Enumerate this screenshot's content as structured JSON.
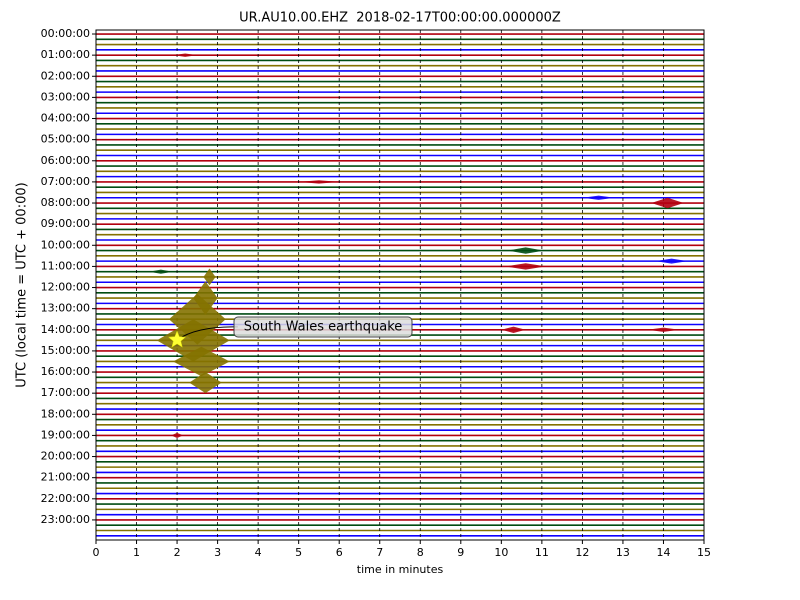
{
  "chart_data": {
    "type": "dayplot",
    "title": "UR.AU10.00.EHZ  2018-02-17T00:00:00.000000Z",
    "x_label": "time in minutes",
    "y_label": "UTC (local time = UTC + 00:00)",
    "xlim": [
      0,
      15
    ],
    "xticks": [
      0,
      1,
      2,
      3,
      4,
      5,
      6,
      7,
      8,
      9,
      10,
      11,
      12,
      13,
      14,
      15
    ],
    "ylim": [
      -0.19,
      23.95
    ],
    "yticks": [
      {
        "value": 0,
        "label": "00:00:00"
      },
      {
        "value": 1,
        "label": "01:00:00"
      },
      {
        "value": 2,
        "label": "02:00:00"
      },
      {
        "value": 3,
        "label": "03:00:00"
      },
      {
        "value": 4,
        "label": "04:00:00"
      },
      {
        "value": 5,
        "label": "05:00:00"
      },
      {
        "value": 6,
        "label": "06:00:00"
      },
      {
        "value": 7,
        "label": "07:00:00"
      },
      {
        "value": 8,
        "label": "08:00:00"
      },
      {
        "value": 9,
        "label": "09:00:00"
      },
      {
        "value": 10,
        "label": "10:00:00"
      },
      {
        "value": 11,
        "label": "11:00:00"
      },
      {
        "value": 12,
        "label": "12:00:00"
      },
      {
        "value": 13,
        "label": "13:00:00"
      },
      {
        "value": 14,
        "label": "14:00:00"
      },
      {
        "value": 15,
        "label": "15:00:00"
      },
      {
        "value": 16,
        "label": "16:00:00"
      },
      {
        "value": 17,
        "label": "17:00:00"
      },
      {
        "value": 18,
        "label": "18:00:00"
      },
      {
        "value": 19,
        "label": "19:00:00"
      },
      {
        "value": 20,
        "label": "20:00:00"
      },
      {
        "value": 21,
        "label": "21:00:00"
      },
      {
        "value": 22,
        "label": "22:00:00"
      },
      {
        "value": 23,
        "label": "23:00:00"
      }
    ],
    "grid": true,
    "trace_colors": [
      "#B2000F",
      "#004C12",
      "#847200",
      "#0E01FF"
    ],
    "bursts": [
      {
        "hour": 11.5,
        "x": 2.8,
        "span": 0.3,
        "amp": 0.4
      },
      {
        "hour": 12.5,
        "x": 2.7,
        "span": 0.6,
        "amp": 0.8
      },
      {
        "hour": 13.5,
        "x": 2.5,
        "span": 1.4,
        "amp": 1.2
      },
      {
        "hour": 14.5,
        "x": 2.4,
        "span": 1.8,
        "amp": 1.0
      },
      {
        "hour": 15.5,
        "x": 2.6,
        "span": 1.4,
        "amp": 0.7
      },
      {
        "hour": 16.5,
        "x": 2.7,
        "span": 0.8,
        "amp": 0.5
      },
      {
        "hour": 8,
        "x": 14.1,
        "span": 0.8,
        "amp": 0.25
      },
      {
        "hour": 10.25,
        "x": 10.6,
        "span": 0.9,
        "amp": 0.15
      },
      {
        "hour": 11,
        "x": 10.6,
        "span": 1.0,
        "amp": 0.15
      },
      {
        "hour": 7.75,
        "x": 12.4,
        "span": 0.8,
        "amp": 0.1
      },
      {
        "hour": 14,
        "x": 10.3,
        "span": 0.6,
        "amp": 0.15
      },
      {
        "hour": 19,
        "x": 2.0,
        "span": 0.3,
        "amp": 0.12
      },
      {
        "hour": 11.25,
        "x": 1.6,
        "span": 0.6,
        "amp": 0.1
      },
      {
        "hour": 7,
        "x": 5.5,
        "span": 1.0,
        "amp": 0.08
      },
      {
        "hour": 14,
        "x": 14,
        "span": 0.8,
        "amp": 0.1
      },
      {
        "hour": 10.75,
        "x": 14.2,
        "span": 0.8,
        "amp": 0.12
      },
      {
        "hour": 1,
        "x": 2.2,
        "span": 0.6,
        "amp": 0.08
      }
    ],
    "event": {
      "label": "South Wales earthquake",
      "minute": 2,
      "hour": 14.48
    }
  }
}
